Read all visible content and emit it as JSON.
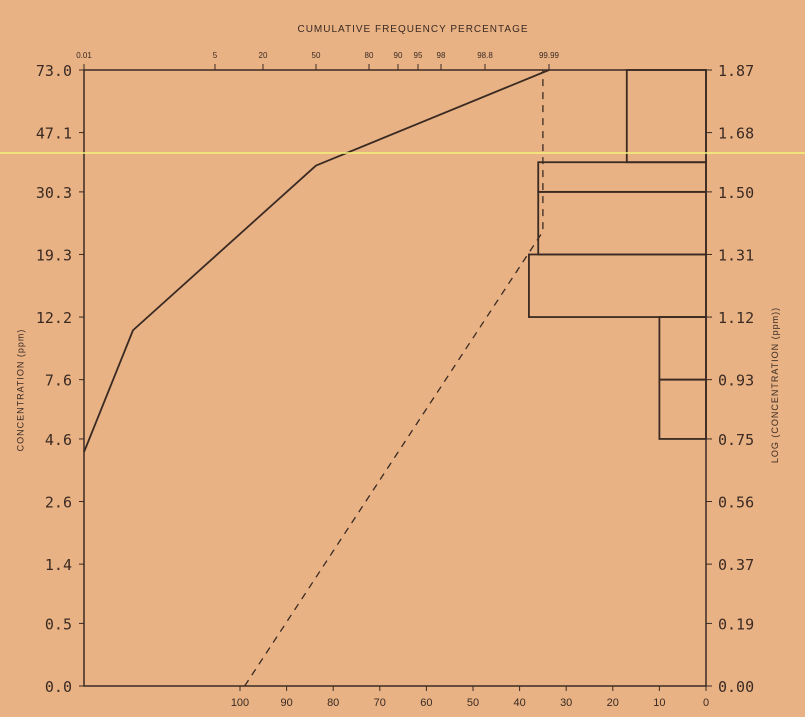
{
  "chart_data": {
    "type": "line",
    "top_axis_label": "CUMULATIVE FREQUENCY PERCENTAGE",
    "left_axis_label": "CONCENTRATION (ppm)",
    "right_axis_label": "LOG (CONCENTRATION (ppm))",
    "probability_ticks": [
      "0.01",
      "5",
      "20",
      "50",
      "80",
      "90",
      "95",
      "98",
      "98.8",
      "99.99"
    ],
    "concentration_ticks": [
      "0.0",
      "0.5",
      "1.4",
      "2.6",
      "4.6",
      "7.6",
      "12.2",
      "19.3",
      "30.3",
      "47.1",
      "73.0"
    ],
    "log_concentration_ticks": [
      "0.00",
      "0.19",
      "0.37",
      "0.56",
      "0.75",
      "0.93",
      "1.12",
      "1.31",
      "1.50",
      "1.68",
      "1.87"
    ],
    "frequency_ticks": [
      "100",
      "90",
      "80",
      "70",
      "60",
      "50",
      "40",
      "30",
      "20",
      "10",
      "0"
    ],
    "cumulative_curve": {
      "x": [
        "0.01",
        "0.3",
        "50",
        "99.99"
      ],
      "y_log_concentration": [
        0.71,
        1.08,
        1.58,
        1.87
      ]
    },
    "dashed_reference_line": {
      "x_frequency": [
        99,
        35,
        35
      ],
      "y_log_concentration": [
        0.0,
        1.38,
        1.87
      ]
    },
    "histogram": {
      "bins_log_concentration": [
        [
          0.75,
          0.93
        ],
        [
          0.93,
          1.12
        ],
        [
          1.12,
          1.31
        ],
        [
          1.31,
          1.5
        ],
        [
          1.5,
          1.59
        ],
        [
          1.59,
          1.87
        ]
      ],
      "frequency_percent": [
        10,
        10,
        38,
        36,
        36,
        17
      ]
    },
    "colors": {
      "background": "#e8b285",
      "ink": "#3a2a22",
      "highlight_line": "#f6f27a"
    }
  }
}
